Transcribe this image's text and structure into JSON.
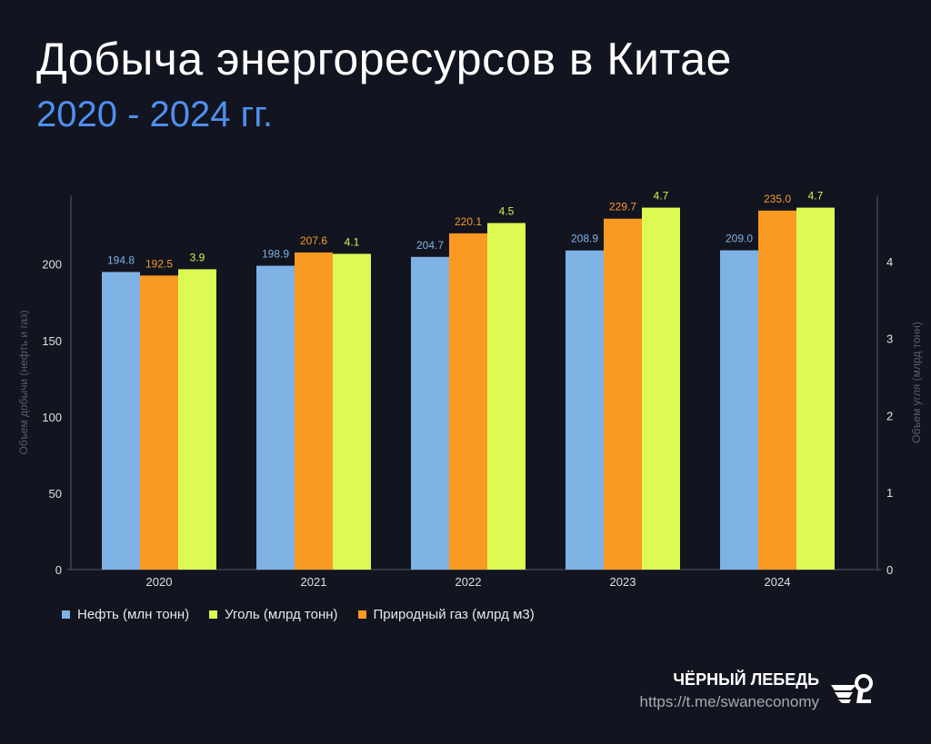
{
  "header": {
    "title": "Добыча энергоресурсов в Китае",
    "subtitle": "2020 - 2024 гг."
  },
  "chart_data": {
    "type": "bar",
    "categories": [
      "2020",
      "2021",
      "2022",
      "2023",
      "2024"
    ],
    "series": [
      {
        "name": "Нефть (млн тонн)",
        "axis": "left",
        "color": "#7eb2e4",
        "label_color": "#7eb2e4",
        "values": [
          194.8,
          198.9,
          204.7,
          208.9,
          209.0
        ],
        "labels": [
          "194.8",
          "198.9",
          "204.7",
          "208.9",
          "209.0"
        ]
      },
      {
        "name": "Природный газ (млрд м3)",
        "axis": "left",
        "color": "#fb9a22",
        "label_color": "#f59a2c",
        "values": [
          192.5,
          207.6,
          220.1,
          229.7,
          235.0
        ],
        "labels": [
          "192.5",
          "207.6",
          "220.1",
          "229.7",
          "235.0"
        ]
      },
      {
        "name": "Уголь (млрд тонн)",
        "axis": "right",
        "color": "#dcfa52",
        "label_color": "#d6ef55",
        "values": [
          3.9,
          4.1,
          4.5,
          4.7,
          4.7
        ],
        "labels": [
          "3.9",
          "4.1",
          "4.5",
          "4.7",
          "4.7"
        ]
      }
    ],
    "ylabel": "Объем добычи (нефть и газ)",
    "y2label": "Объем угля (млрд тонн)",
    "ylim": [
      0,
      245
    ],
    "y2lim": [
      0,
      4.86
    ],
    "yticks": [
      "0",
      "50",
      "100",
      "150",
      "200"
    ],
    "y2ticks": [
      "0",
      "1",
      "2",
      "3",
      "4"
    ],
    "grid": false,
    "legend_placement": "bottom-left",
    "legend_order": [
      "Нефть (млн тонн)",
      "Уголь (млрд тонн)",
      "Природный газ (млрд м3)"
    ]
  },
  "legend": [
    {
      "label": "Нефть (млн тонн)",
      "color": "#7eb2e4"
    },
    {
      "label": "Уголь (млрд тонн)",
      "color": "#dcfa52"
    },
    {
      "label": "Природный газ (млрд м3)",
      "color": "#fb9a22"
    }
  ],
  "brand": {
    "name": "ЧЁРНЫЙ ЛЕБЕДЬ",
    "url": "https://t.me/swaneconomy"
  }
}
